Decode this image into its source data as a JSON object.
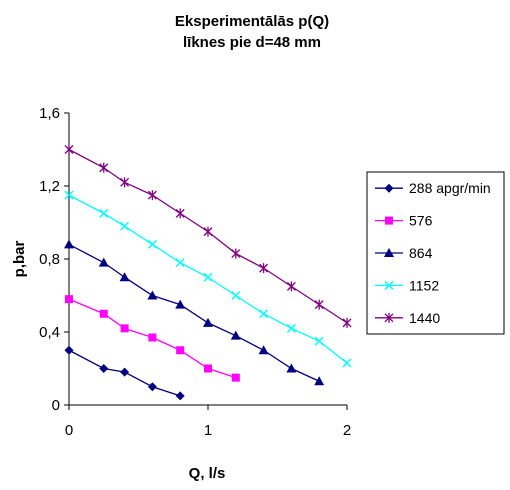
{
  "chart_data": {
    "type": "line",
    "title_lines": [
      "Eksperimentālās p(Q)",
      "līknes pie d=48 mm"
    ],
    "xlabel": "Q, l/s",
    "ylabel": "p,bar",
    "xlim": [
      0,
      2
    ],
    "ylim": [
      0,
      1.6
    ],
    "x_ticks": [
      {
        "v": 0,
        "label": "0"
      },
      {
        "v": 1,
        "label": "1"
      },
      {
        "v": 2,
        "label": "2"
      }
    ],
    "y_ticks": [
      {
        "v": 0,
        "label": "0"
      },
      {
        "v": 0.4,
        "label": "0,4"
      },
      {
        "v": 0.8,
        "label": "0,8"
      },
      {
        "v": 1.2,
        "label": "1,2"
      },
      {
        "v": 1.6,
        "label": "1,6"
      }
    ],
    "grid": false,
    "legend_position": "right",
    "series": [
      {
        "name": "288 apgr/min",
        "color": "#000080",
        "marker": "diamond",
        "x": [
          0,
          0.25,
          0.4,
          0.6,
          0.8
        ],
        "y": [
          0.3,
          0.2,
          0.18,
          0.1,
          0.05
        ]
      },
      {
        "name": "576",
        "color": "#FF00FF",
        "marker": "square",
        "x": [
          0,
          0.25,
          0.4,
          0.6,
          0.8,
          1.0,
          1.2
        ],
        "y": [
          0.58,
          0.5,
          0.42,
          0.37,
          0.3,
          0.2,
          0.15
        ]
      },
      {
        "name": "864",
        "color": "#000080",
        "marker": "triangle",
        "x": [
          0,
          0.25,
          0.4,
          0.6,
          0.8,
          1.0,
          1.2,
          1.4,
          1.6,
          1.8
        ],
        "y": [
          0.88,
          0.78,
          0.7,
          0.6,
          0.55,
          0.45,
          0.38,
          0.3,
          0.2,
          0.13
        ]
      },
      {
        "name": "1152",
        "color": "#00FFFF",
        "marker": "x",
        "x": [
          0,
          0.25,
          0.4,
          0.6,
          0.8,
          1.0,
          1.2,
          1.4,
          1.6,
          1.8,
          2.0
        ],
        "y": [
          1.15,
          1.05,
          0.98,
          0.88,
          0.78,
          0.7,
          0.6,
          0.5,
          0.42,
          0.35,
          0.23
        ]
      },
      {
        "name": "1440",
        "color": "#800080",
        "marker": "star",
        "x": [
          0,
          0.25,
          0.4,
          0.6,
          0.8,
          1.0,
          1.2,
          1.4,
          1.6,
          1.8,
          2.0
        ],
        "y": [
          1.4,
          1.3,
          1.22,
          1.15,
          1.05,
          0.95,
          0.83,
          0.75,
          0.65,
          0.55,
          0.45
        ]
      }
    ]
  }
}
